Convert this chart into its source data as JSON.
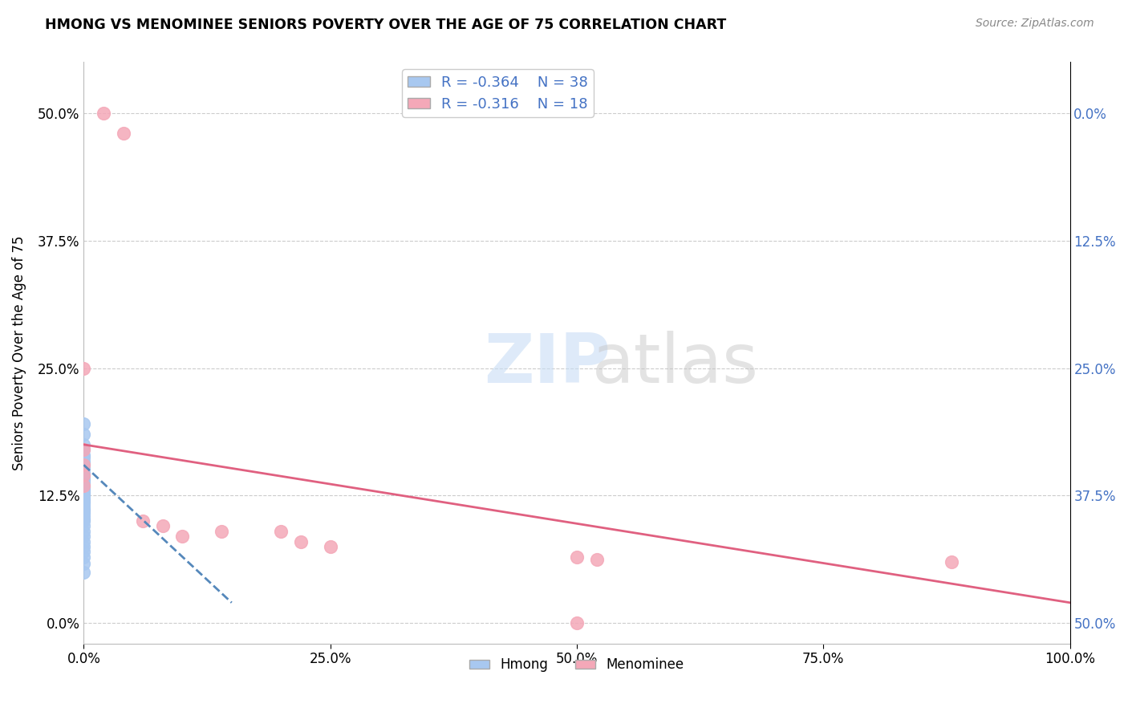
{
  "title": "HMONG VS MENOMINEE SENIORS POVERTY OVER THE AGE OF 75 CORRELATION CHART",
  "source": "Source: ZipAtlas.com",
  "ylabel": "Seniors Poverty Over the Age of 75",
  "xlim": [
    0.0,
    1.0
  ],
  "ylim": [
    -0.02,
    0.55
  ],
  "xtick_values": [
    0.0,
    0.25,
    0.5,
    0.75,
    1.0
  ],
  "xtick_labels": [
    "0.0%",
    "25.0%",
    "50.0%",
    "75.0%",
    "100.0%"
  ],
  "ytick_values": [
    0.0,
    0.125,
    0.25,
    0.375,
    0.5
  ],
  "ytick_labels": [
    "0.0%",
    "12.5%",
    "25.0%",
    "37.5%",
    "50.0%"
  ],
  "right_ytick_labels": [
    "50.0%",
    "37.5%",
    "25.0%",
    "12.5%",
    "0.0%"
  ],
  "hmong_R": -0.364,
  "hmong_N": 38,
  "menominee_R": -0.316,
  "menominee_N": 18,
  "hmong_color": "#a8c8f0",
  "menominee_color": "#f4a8b8",
  "hmong_line_color": "#5588bb",
  "menominee_line_color": "#e06080",
  "background_color": "#ffffff",
  "grid_color": "#cccccc",
  "hmong_x": [
    0.0,
    0.0,
    0.0,
    0.0,
    0.0,
    0.0,
    0.0,
    0.0,
    0.0,
    0.0,
    0.0,
    0.0,
    0.0,
    0.0,
    0.0,
    0.0,
    0.0,
    0.0,
    0.0,
    0.0,
    0.0,
    0.0,
    0.0,
    0.0,
    0.0,
    0.0,
    0.0,
    0.0,
    0.0,
    0.0,
    0.0,
    0.0,
    0.0,
    0.0,
    0.0,
    0.0,
    0.0,
    0.0
  ],
  "hmong_y": [
    0.195,
    0.185,
    0.175,
    0.17,
    0.165,
    0.162,
    0.158,
    0.155,
    0.152,
    0.148,
    0.145,
    0.142,
    0.14,
    0.138,
    0.135,
    0.132,
    0.13,
    0.128,
    0.125,
    0.122,
    0.12,
    0.118,
    0.115,
    0.112,
    0.11,
    0.108,
    0.105,
    0.102,
    0.1,
    0.095,
    0.09,
    0.085,
    0.08,
    0.075,
    0.07,
    0.065,
    0.058,
    0.05
  ],
  "menominee_x": [
    0.02,
    0.04,
    0.0,
    0.0,
    0.0,
    0.0,
    0.0,
    0.06,
    0.08,
    0.1,
    0.14,
    0.2,
    0.22,
    0.25,
    0.5,
    0.52,
    0.88,
    0.5
  ],
  "menominee_y": [
    0.5,
    0.48,
    0.25,
    0.17,
    0.155,
    0.145,
    0.135,
    0.1,
    0.095,
    0.085,
    0.09,
    0.09,
    0.08,
    0.075,
    0.065,
    0.062,
    0.06,
    0.0
  ],
  "hmong_trend_x": [
    0.0,
    0.15
  ],
  "hmong_trend_y": [
    0.155,
    0.02
  ],
  "menominee_trend_x": [
    0.0,
    1.0
  ],
  "menominee_trend_y": [
    0.175,
    0.02
  ]
}
